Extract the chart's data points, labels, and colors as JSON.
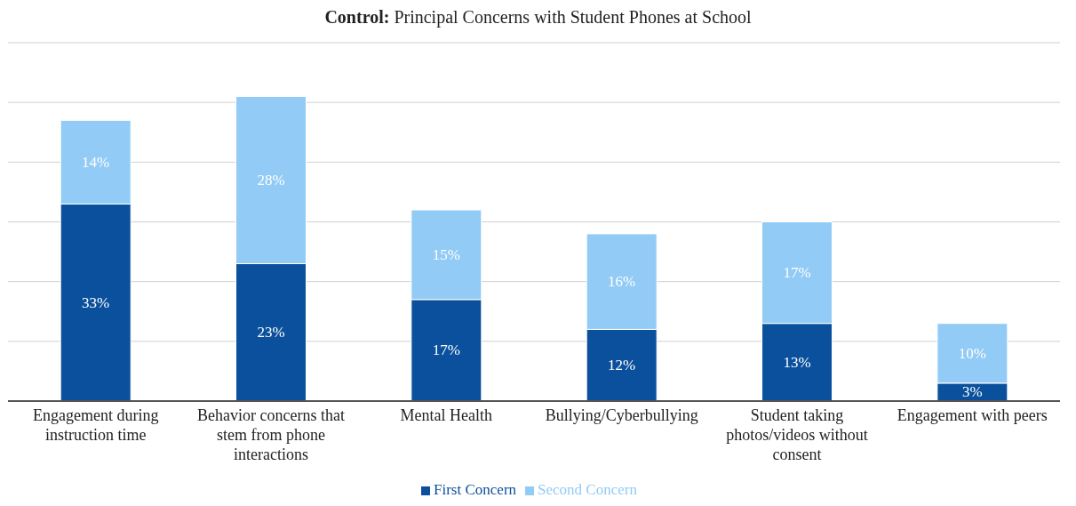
{
  "chart_data": {
    "type": "bar",
    "title": "Control: Principal Concerns with Student Phones at School",
    "categories": [
      "Engagement during instruction time",
      "Behavior concerns that stem from phone interactions",
      "Mental Health",
      "Bullying/Cyberbullying",
      "Student taking photos/videos without consent",
      "Engagement with peers"
    ],
    "stacked": true,
    "series": [
      {
        "name": "First Concern",
        "color": "#0b509c",
        "values": [
          33,
          23,
          17,
          12,
          13,
          3
        ],
        "value_labels": [
          "33%",
          "23%",
          "17%",
          "12%",
          "13%",
          "3%"
        ]
      },
      {
        "name": "Second Concern",
        "color": "#92cbf5",
        "values": [
          14,
          28,
          15,
          16,
          17,
          10
        ],
        "value_labels": [
          "14%",
          "28%",
          "15%",
          "16%",
          "17%",
          "10%"
        ]
      }
    ],
    "ylim": [
      0,
      60
    ],
    "yticks": [
      {
        "value": 0,
        "label": null
      },
      {
        "value": 10,
        "label": null
      },
      {
        "value": 20,
        "label": null
      },
      {
        "value": 30,
        "label": null
      },
      {
        "value": 40,
        "label": null
      },
      {
        "value": 50,
        "label": null
      },
      {
        "value": 60,
        "label": null
      }
    ],
    "tick_labels": "x",
    "grid": "y",
    "legend": "bottom"
  }
}
